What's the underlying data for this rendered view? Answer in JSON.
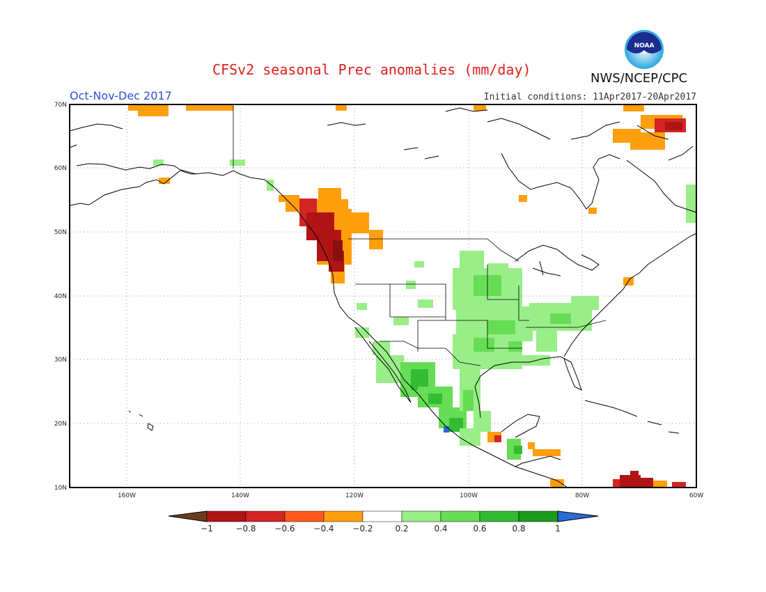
{
  "title": "CFSv2 seasonal Prec anomalies (mm/day)",
  "period": "Oct-Nov-Dec 2017",
  "initial_conditions": "Initial conditions: 11Apr2017-20Apr2017",
  "agency": "NWS/NCEP/CPC",
  "logo_text": "NOAA",
  "lat_labels": [
    "70N",
    "60N",
    "50N",
    "40N",
    "30N",
    "20N",
    "10N"
  ],
  "lon_labels": [
    "160W",
    "140W",
    "120W",
    "100W",
    "80W",
    "60W"
  ],
  "colorbar": {
    "ticks": [
      "-1",
      "-0.8",
      "-0.6",
      "-0.4",
      "-0.2",
      "0.2",
      "0.4",
      "0.6",
      "0.8",
      "1"
    ],
    "colors": [
      "#6b3d1e",
      "#b01414",
      "#d42525",
      "#ff5a1e",
      "#ff9f0d",
      "#ffffff",
      "#99ee88",
      "#66dd55",
      "#33bb33",
      "#1b9a1b",
      "#2a6bd6"
    ]
  },
  "map_extent": {
    "lon": [
      -170,
      -60
    ],
    "lat": [
      10,
      70
    ]
  },
  "anomaly_regions": [
    {
      "name": "Pacific Northwest wet deficit core",
      "level": "-0.8",
      "color": "#b01414"
    },
    {
      "name": "Pacific Northwest outer",
      "level": "-0.4",
      "color": "#ff9f0d"
    },
    {
      "name": "Central US positive anomaly",
      "level": "0.2",
      "color": "#99ee88"
    },
    {
      "name": "Western Mexico positive anomaly",
      "level": "0.4",
      "color": "#66dd55"
    },
    {
      "name": "Northern Quebec negative anomaly",
      "level": "-0.6",
      "color": "#d42525"
    }
  ]
}
